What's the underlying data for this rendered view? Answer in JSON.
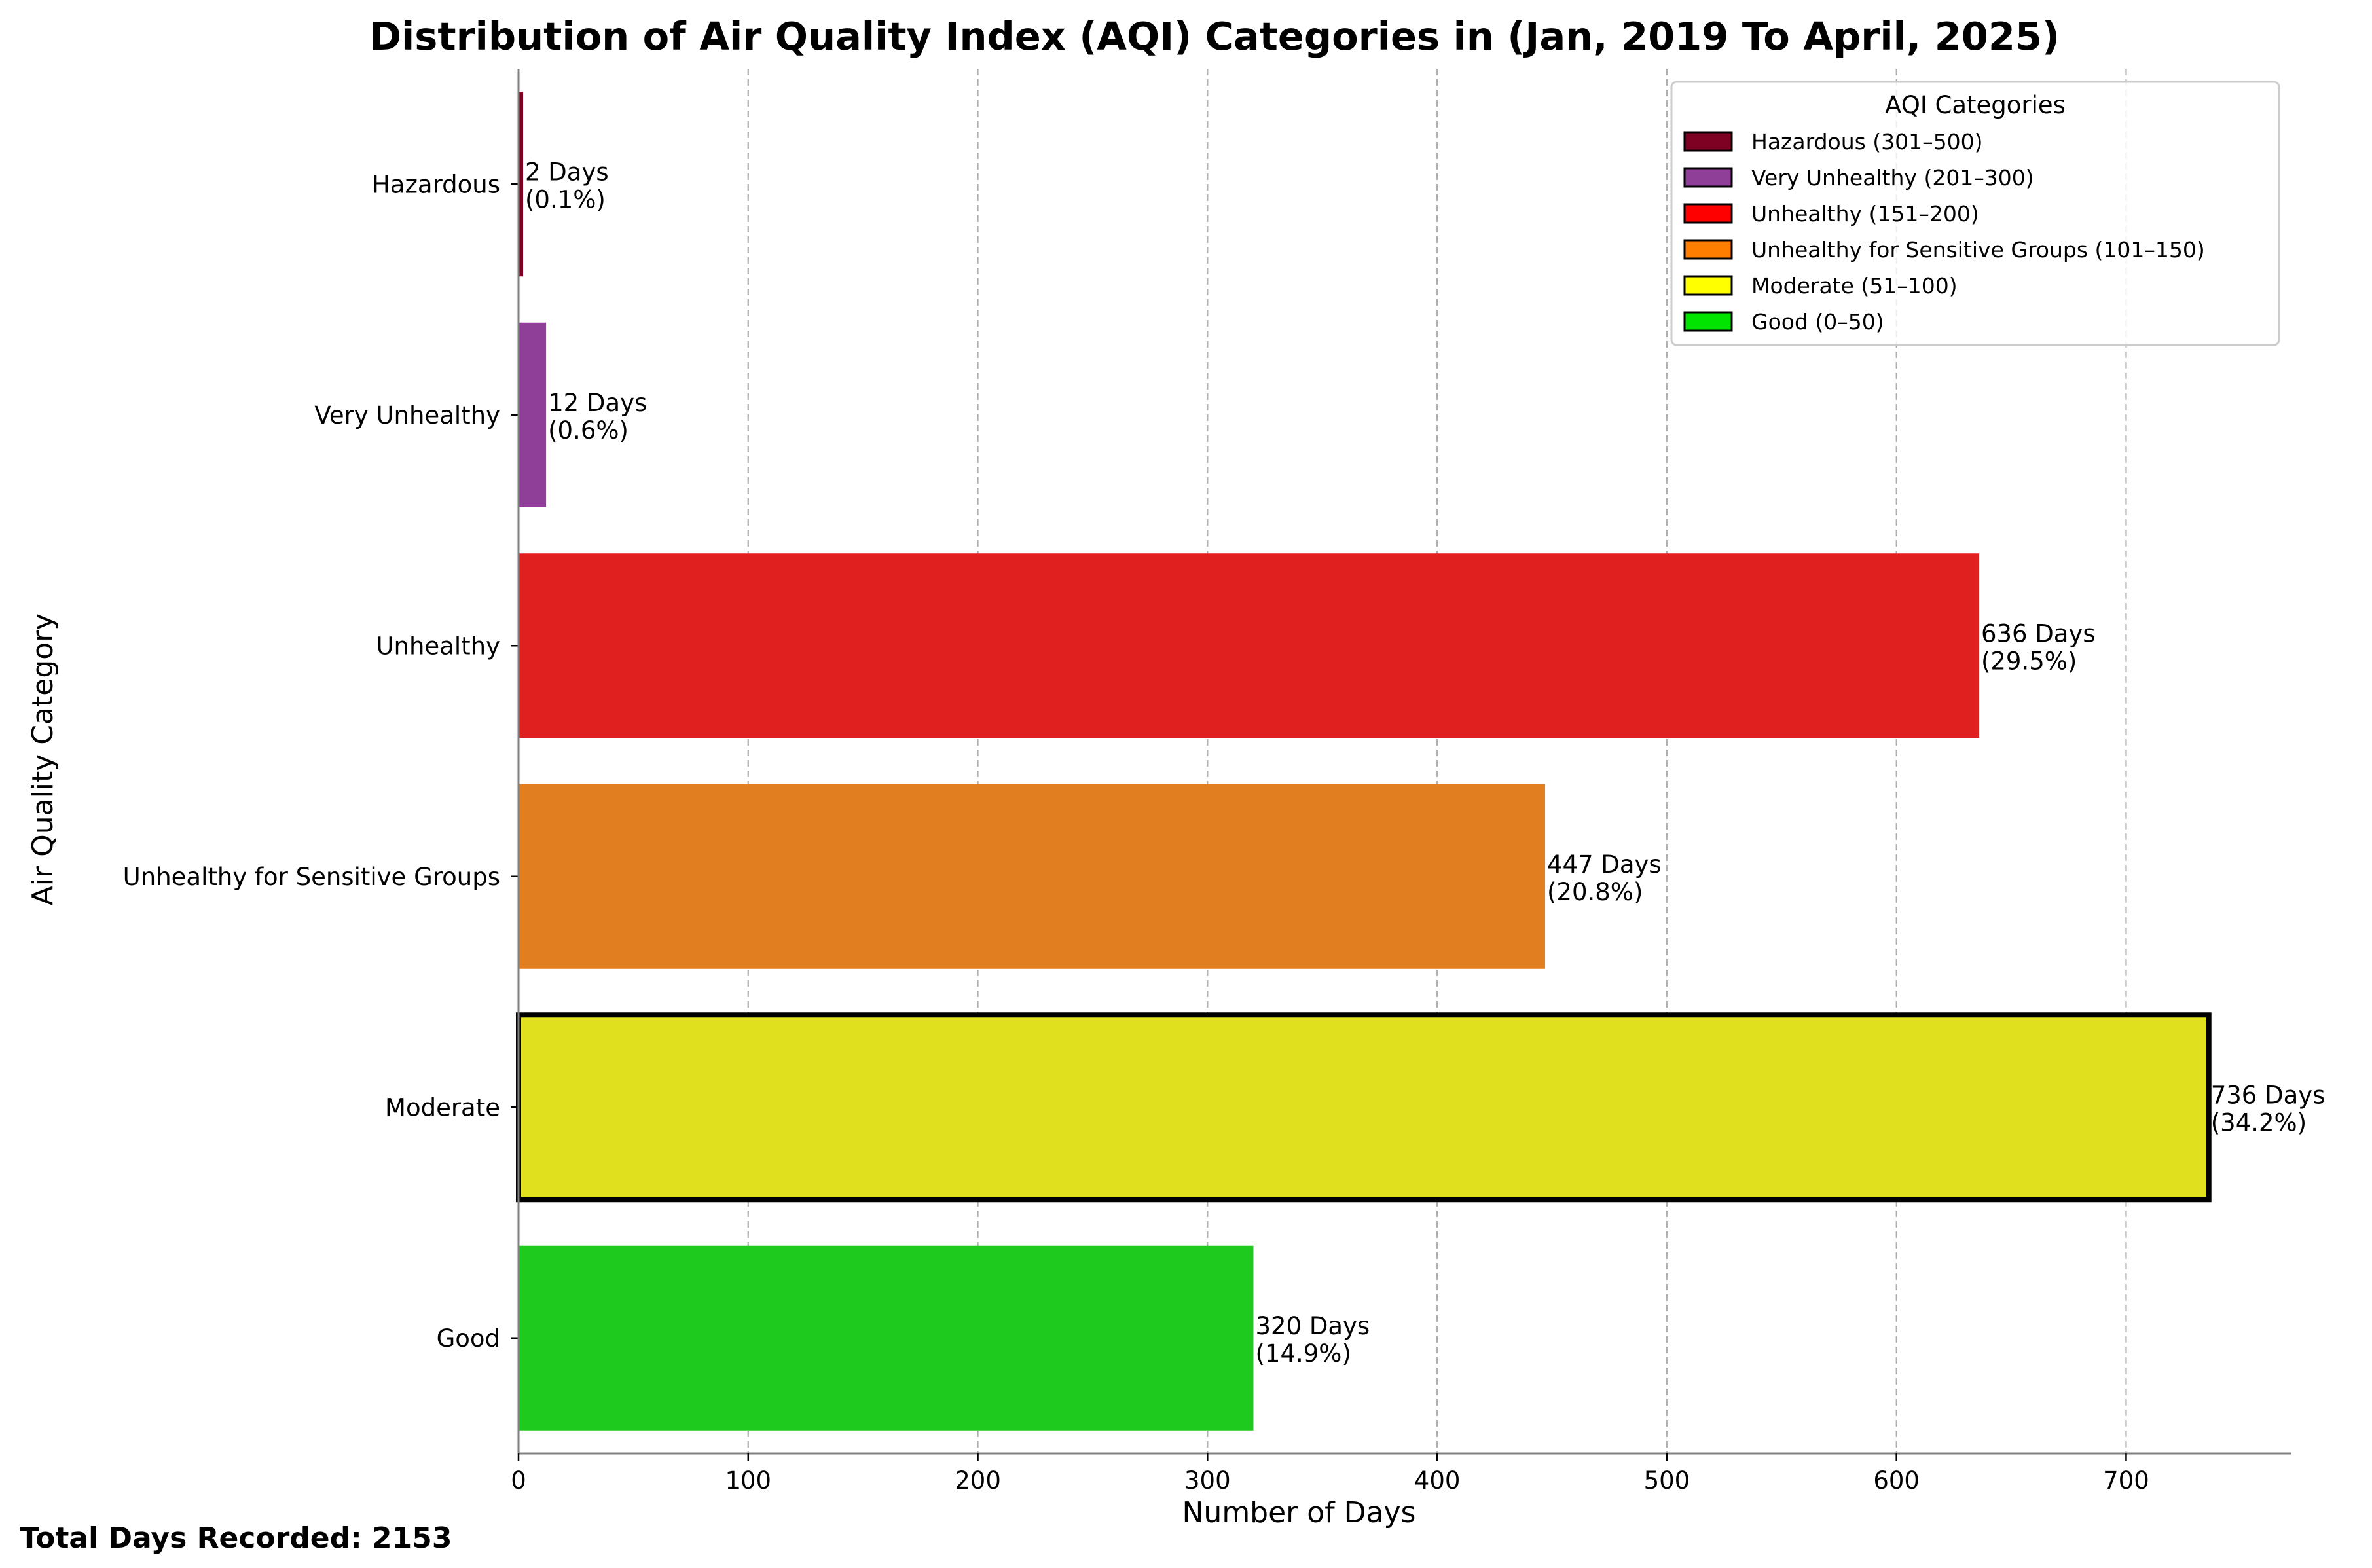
{
  "chart_data": {
    "type": "bar",
    "orientation": "horizontal",
    "title": "Distribution of Air Quality Index (AQI) Categories in (Jan, 2019 To April, 2025)",
    "xlabel": "Number of Days",
    "ylabel": "Air Quality Category",
    "xlim": [
      0,
      772
    ],
    "xticks": [
      0,
      100,
      200,
      300,
      400,
      500,
      600,
      700
    ],
    "grid": "x dashed",
    "categories": [
      "Hazardous",
      "Very Unhealthy",
      "Unhealthy",
      "Unhealthy for Sensitive Groups",
      "Moderate",
      "Good"
    ],
    "values": [
      2,
      12,
      636,
      447,
      736,
      320
    ],
    "colors": [
      "#7e0023",
      "#8f3f97",
      "#e0201f",
      "#e07e20",
      "#e0e01f",
      "#1fca1f"
    ],
    "highlighted": "Moderate",
    "data_labels": [
      {
        "line1": "2 Days",
        "line2": "(0.1%)"
      },
      {
        "line1": "12 Days",
        "line2": "(0.6%)"
      },
      {
        "line1": "636 Days",
        "line2": "(29.5%)"
      },
      {
        "line1": "447 Days",
        "line2": "(20.8%)"
      },
      {
        "line1": "736 Days",
        "line2": "(34.2%)"
      },
      {
        "line1": "320 Days",
        "line2": "(14.9%)"
      }
    ],
    "legend": {
      "title": "AQI Categories",
      "placement": "top-right",
      "entries": [
        {
          "label": "Hazardous (301–500)",
          "color": "#7e0023"
        },
        {
          "label": "Very Unhealthy (201–300)",
          "color": "#8f3f97"
        },
        {
          "label": "Unhealthy (151–200)",
          "color": "#ff0000"
        },
        {
          "label": "Unhealthy for Sensitive Groups (101–150)",
          "color": "#ff7e00"
        },
        {
          "label": "Moderate (51–100)",
          "color": "#ffff00"
        },
        {
          "label": "Good (0–50)",
          "color": "#00e400"
        }
      ]
    }
  },
  "footer_text": "Total Days Recorded: 2153"
}
